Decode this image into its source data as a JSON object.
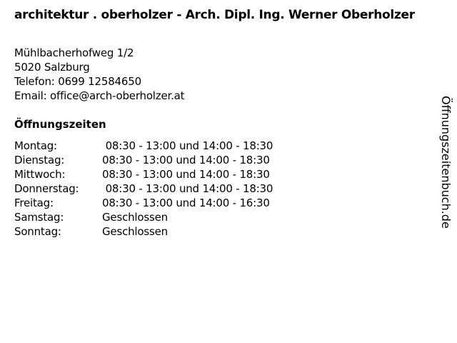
{
  "title": "architektur . oberholzer - Arch. Dipl. Ing. Werner Oberholzer",
  "address": {
    "street": "Mühlbacherhofweg 1/2",
    "city": "5020 Salzburg",
    "phone": "Telefon: 0699 12584650",
    "email": "Email: office@arch-oberholzer.at"
  },
  "hours_title": "Öffnungszeiten",
  "hours": [
    {
      "day": "Montag:",
      "time": " 08:30 - 13:00 und 14:00 - 18:30"
    },
    {
      "day": "Dienstag:",
      "time": "08:30 - 13:00 und 14:00 - 18:30"
    },
    {
      "day": "Mittwoch:",
      "time": "08:30 - 13:00 und 14:00 - 18:30"
    },
    {
      "day": "Donnerstag:",
      "time": " 08:30 - 13:00 und 14:00 - 18:30"
    },
    {
      "day": "Freitag:",
      "time": "08:30 - 13:00 und 14:00 - 16:30"
    },
    {
      "day": "Samstag:",
      "time": "Geschlossen"
    },
    {
      "day": "Sonntag:",
      "time": "Geschlossen"
    }
  ],
  "watermark": "Öffnungszeitenbuch.de"
}
